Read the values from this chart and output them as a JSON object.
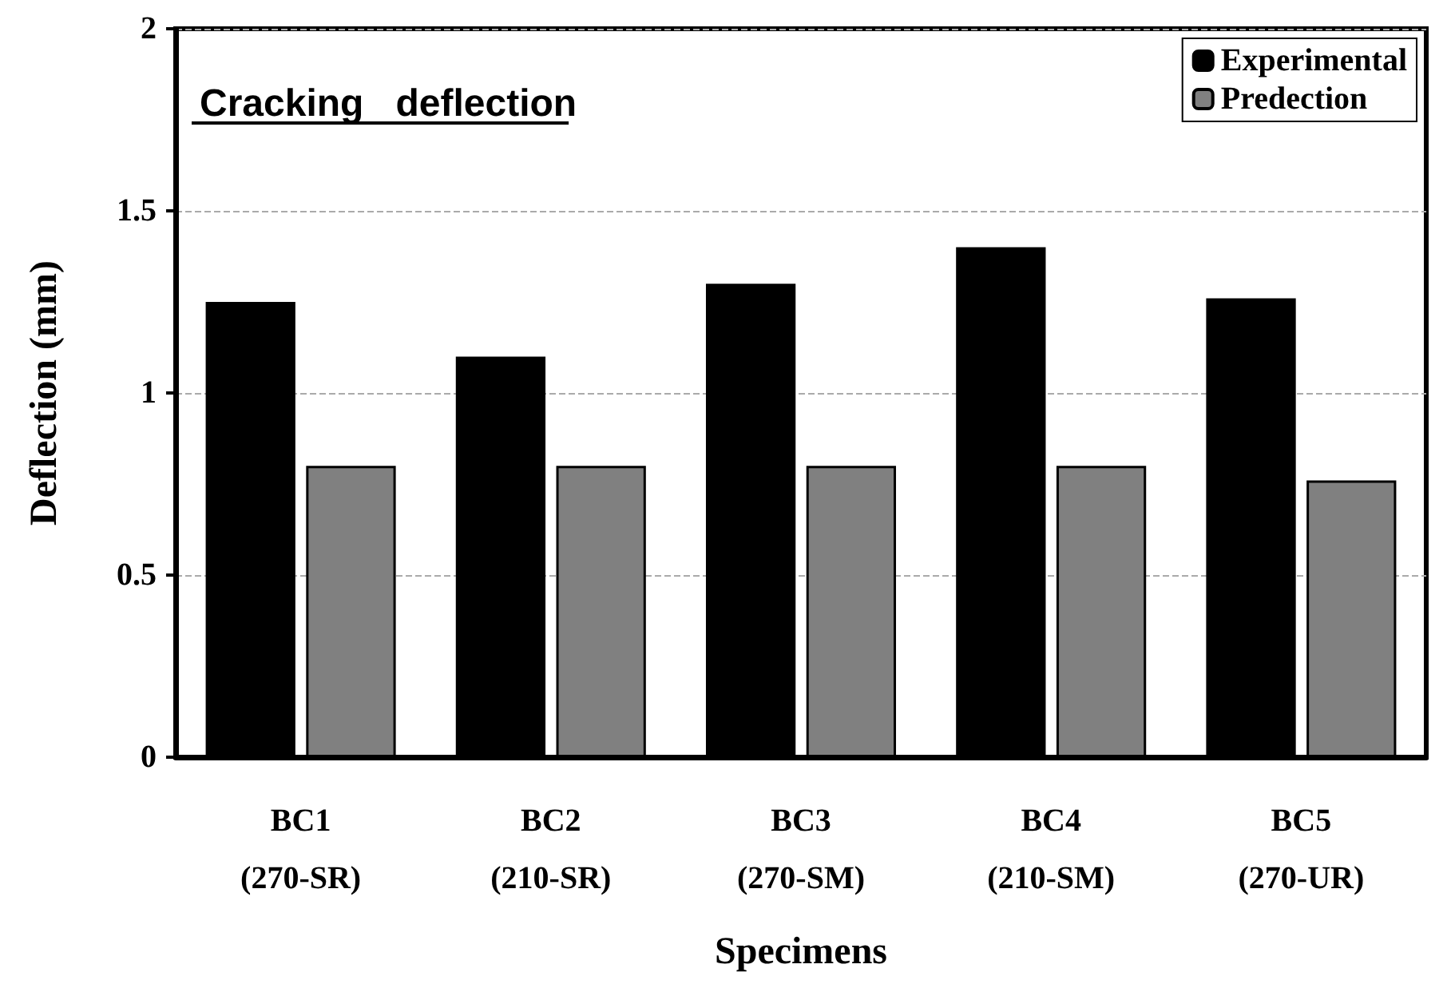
{
  "chart_data": {
    "type": "bar",
    "title": "Cracking   deflection",
    "xlabel": "Specimens",
    "ylabel": "Deflection (mm)",
    "categories": [
      "BC1\n(270-SR)",
      "BC2\n(210-SR)",
      "BC3\n(270-SM)",
      "BC4\n(210-SM)",
      "BC5\n(270-UR)"
    ],
    "series": [
      {
        "name": "Experimental",
        "color": "#000000",
        "values": [
          1.25,
          1.1,
          1.3,
          1.4,
          1.26
        ]
      },
      {
        "name": "Predection",
        "color": "#808080",
        "values": [
          0.8,
          0.8,
          0.8,
          0.8,
          0.76
        ]
      }
    ],
    "ylim": [
      0,
      2
    ],
    "yticks": [
      0,
      0.5,
      1,
      1.5,
      2
    ],
    "grid": "y",
    "legend": "top right"
  }
}
